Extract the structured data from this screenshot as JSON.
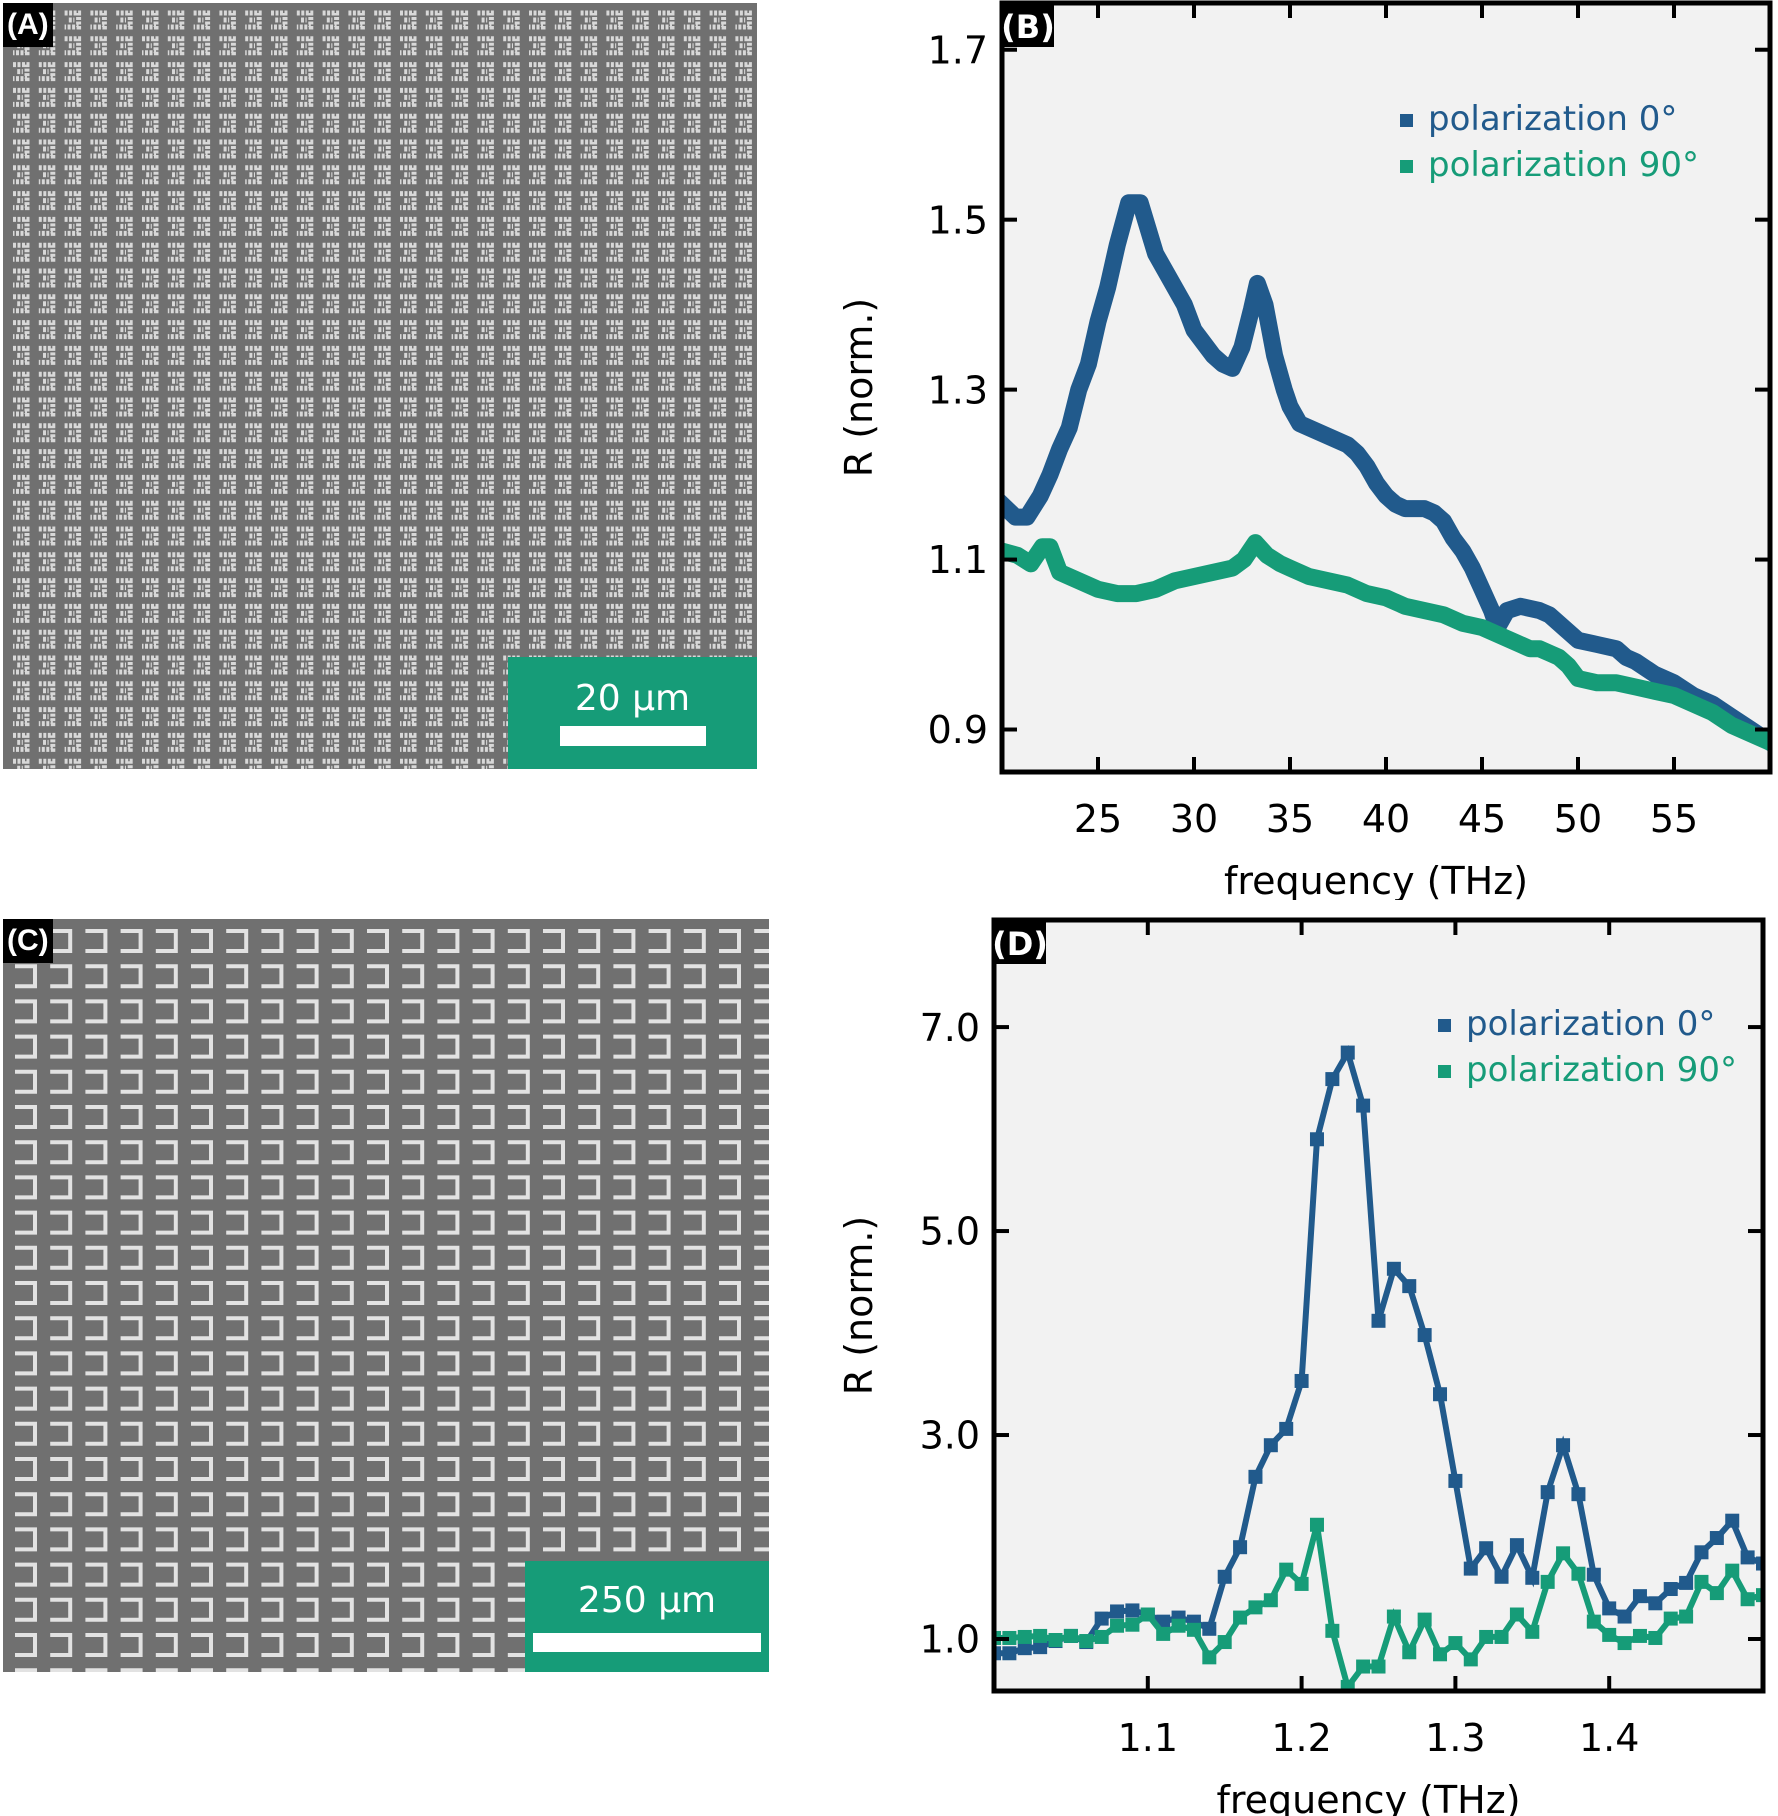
{
  "figure": {
    "panel_a": {
      "label": "(A)",
      "description": "SEM image of microscale split-ring resonator array",
      "scale_bar_label": "20 µm"
    },
    "panel_c": {
      "label": "(C)",
      "description": "SEM image of larger split-ring resonator array",
      "scale_bar_label": "250 µm"
    }
  },
  "colors": {
    "pol0": "#215a8c",
    "pol90": "#169c78",
    "plot_bg": "#f2f2f2",
    "scale_bar_bg": "#169c78"
  },
  "chart_data": [
    {
      "panel_label": "(B)",
      "type": "line",
      "title": "",
      "xlabel": "frequency (THz)",
      "ylabel": "R (norm.)",
      "xlim": [
        20,
        60
      ],
      "ylim": [
        0.85,
        1.755
      ],
      "xticks": [
        25,
        30,
        35,
        40,
        45,
        50,
        55
      ],
      "xtick_labels": [
        "25",
        "30",
        "35",
        "40",
        "45",
        "50",
        "55"
      ],
      "yticks": [
        0.9,
        1.1,
        1.3,
        1.5,
        1.7
      ],
      "ytick_labels": [
        "0.9",
        "1.1",
        "1.3",
        "1.5",
        "1.7"
      ],
      "grid": false,
      "legend_position": "top-right",
      "series": [
        {
          "name": "polarization 0°",
          "color": "#215a8c",
          "x": [
            20.0,
            20.7,
            21.3,
            22.0,
            22.5,
            23.0,
            23.5,
            24.0,
            24.5,
            25.0,
            25.5,
            26.0,
            26.6,
            27.2,
            27.6,
            28.0,
            28.5,
            29.0,
            29.5,
            30.0,
            30.5,
            31.0,
            31.5,
            32.0,
            32.5,
            33.0,
            33.3,
            33.7,
            34.2,
            34.7,
            35.0,
            35.5,
            36.0,
            37.0,
            38.0,
            38.5,
            39.0,
            39.5,
            40.0,
            40.5,
            41.0,
            42.0,
            42.5,
            43.0,
            43.5,
            44.0,
            44.5,
            45.0,
            45.5,
            45.8,
            46.3,
            47.0,
            48.0,
            48.5,
            49.0,
            49.5,
            50.0,
            51.0,
            52.0,
            52.5,
            53.0,
            54.0,
            55.0,
            56.0,
            57.0,
            58.0,
            59.0,
            60.0
          ],
          "values": [
            1.165,
            1.15,
            1.15,
            1.175,
            1.2,
            1.23,
            1.255,
            1.3,
            1.33,
            1.38,
            1.42,
            1.47,
            1.52,
            1.52,
            1.49,
            1.46,
            1.44,
            1.42,
            1.4,
            1.37,
            1.355,
            1.34,
            1.33,
            1.325,
            1.35,
            1.395,
            1.425,
            1.4,
            1.34,
            1.3,
            1.28,
            1.26,
            1.255,
            1.245,
            1.235,
            1.225,
            1.21,
            1.19,
            1.175,
            1.165,
            1.16,
            1.16,
            1.155,
            1.145,
            1.125,
            1.11,
            1.09,
            1.065,
            1.04,
            1.02,
            1.04,
            1.045,
            1.04,
            1.035,
            1.025,
            1.015,
            1.005,
            1.0,
            0.995,
            0.985,
            0.98,
            0.965,
            0.955,
            0.94,
            0.93,
            0.915,
            0.9,
            0.885
          ]
        },
        {
          "name": "polarization 90°",
          "color": "#169c78",
          "x": [
            20.0,
            20.8,
            21.5,
            22.1,
            22.5,
            23.0,
            24.0,
            25.0,
            26.0,
            27.0,
            28.0,
            29.0,
            30.0,
            31.0,
            32.0,
            32.6,
            33.2,
            33.8,
            34.5,
            35.0,
            36.0,
            37.0,
            38.0,
            39.0,
            40.0,
            41.0,
            42.0,
            43.0,
            44.0,
            45.0,
            46.0,
            47.0,
            47.5,
            48.0,
            48.5,
            49.0,
            49.5,
            50.0,
            51.0,
            52.0,
            53.0,
            54.0,
            55.0,
            56.0,
            57.0,
            58.0,
            59.0,
            60.0
          ],
          "values": [
            1.11,
            1.105,
            1.095,
            1.115,
            1.115,
            1.085,
            1.075,
            1.065,
            1.06,
            1.06,
            1.065,
            1.075,
            1.08,
            1.085,
            1.09,
            1.1,
            1.12,
            1.105,
            1.095,
            1.09,
            1.08,
            1.075,
            1.07,
            1.06,
            1.055,
            1.045,
            1.04,
            1.035,
            1.025,
            1.02,
            1.01,
            1.0,
            0.995,
            0.995,
            0.99,
            0.985,
            0.975,
            0.96,
            0.955,
            0.955,
            0.95,
            0.945,
            0.94,
            0.93,
            0.92,
            0.905,
            0.895,
            0.885
          ]
        }
      ]
    },
    {
      "panel_label": "(D)",
      "type": "line",
      "title": "",
      "xlabel": "frequency (THz)",
      "ylabel": "R (norm.)",
      "xlim": [
        1.0,
        1.5
      ],
      "ylim": [
        0.49,
        8.05
      ],
      "xticks": [
        1.1,
        1.2,
        1.3,
        1.4
      ],
      "xtick_labels": [
        "1.1",
        "1.2",
        "1.3",
        "1.4"
      ],
      "yticks": [
        1.0,
        3.0,
        5.0,
        7.0
      ],
      "ytick_labels": [
        "1.0",
        "3.0",
        "5.0",
        "7.0"
      ],
      "grid": false,
      "legend_position": "top-right",
      "markers": "square",
      "series": [
        {
          "name": "polarization 0°",
          "color": "#215a8c",
          "x": [
            1.0,
            1.01,
            1.02,
            1.03,
            1.04,
            1.05,
            1.06,
            1.07,
            1.08,
            1.09,
            1.1,
            1.11,
            1.12,
            1.13,
            1.14,
            1.15,
            1.16,
            1.17,
            1.18,
            1.19,
            1.2,
            1.21,
            1.22,
            1.23,
            1.24,
            1.25,
            1.26,
            1.27,
            1.28,
            1.29,
            1.3,
            1.31,
            1.32,
            1.33,
            1.34,
            1.35,
            1.36,
            1.37,
            1.38,
            1.39,
            1.4,
            1.41,
            1.42,
            1.43,
            1.44,
            1.45,
            1.46,
            1.47,
            1.48,
            1.49,
            1.5
          ],
          "values": [
            0.86,
            0.86,
            0.91,
            0.92,
            0.98,
            1.03,
            0.97,
            1.2,
            1.27,
            1.28,
            1.24,
            1.17,
            1.21,
            1.17,
            1.1,
            1.61,
            1.9,
            2.59,
            2.9,
            3.06,
            3.53,
            5.9,
            6.49,
            6.75,
            6.23,
            4.12,
            4.63,
            4.46,
            3.98,
            3.4,
            2.55,
            1.69,
            1.89,
            1.61,
            1.92,
            1.6,
            2.44,
            2.9,
            2.42,
            1.63,
            1.3,
            1.22,
            1.42,
            1.35,
            1.49,
            1.55,
            1.85,
            1.99,
            2.16,
            1.8,
            1.74
          ]
        },
        {
          "name": "polarization 90°",
          "color": "#169c78",
          "x": [
            1.0,
            1.01,
            1.02,
            1.03,
            1.04,
            1.05,
            1.06,
            1.07,
            1.08,
            1.09,
            1.1,
            1.11,
            1.12,
            1.13,
            1.14,
            1.15,
            1.16,
            1.17,
            1.18,
            1.19,
            1.2,
            1.21,
            1.22,
            1.23,
            1.24,
            1.25,
            1.26,
            1.27,
            1.28,
            1.29,
            1.3,
            1.31,
            1.32,
            1.33,
            1.34,
            1.35,
            1.36,
            1.37,
            1.38,
            1.39,
            1.4,
            1.41,
            1.42,
            1.43,
            1.44,
            1.45,
            1.46,
            1.47,
            1.48,
            1.49,
            1.5
          ],
          "values": [
            1.01,
            1.01,
            1.02,
            1.03,
            0.99,
            1.03,
            0.98,
            1.02,
            1.13,
            1.14,
            1.24,
            1.05,
            1.13,
            1.09,
            0.82,
            0.97,
            1.21,
            1.31,
            1.38,
            1.68,
            1.54,
            2.12,
            1.08,
            0.53,
            0.73,
            0.73,
            1.22,
            0.87,
            1.19,
            0.85,
            0.96,
            0.8,
            1.02,
            1.02,
            1.24,
            1.07,
            1.56,
            1.84,
            1.64,
            1.17,
            1.04,
            0.96,
            1.03,
            1.01,
            1.2,
            1.22,
            1.56,
            1.45,
            1.67,
            1.39,
            1.43
          ]
        }
      ]
    }
  ]
}
